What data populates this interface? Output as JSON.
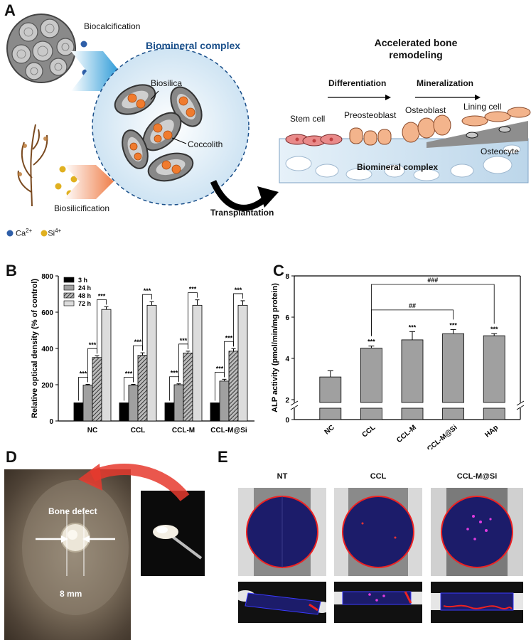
{
  "panelA": {
    "letter": "A",
    "biocalcification": "Biocalcification",
    "biosilicification": "Biosilicification",
    "biomineral_title": "Biomineral complex",
    "biosilica": "Biosilica",
    "coccolith": "Coccolith",
    "transplantation": "Transplantation",
    "accelerated_line1": "Accelerated bone",
    "accelerated_line2": "remodeling",
    "differentiation": "Differentiation",
    "mineralization": "Mineralization",
    "stem_cell": "Stem cell",
    "preosteoblast": "Preosteoblast",
    "osteoblast": "Osteoblast",
    "lining_cell": "Lining cell",
    "osteocyte": "Osteocyte",
    "biomineral_complex": "Biomineral complex",
    "ca_label": "Ca",
    "ca_sup": "2+",
    "si_label": "Si",
    "si_sup": "4+",
    "colors": {
      "ca": "#2f5fa8",
      "si": "#e0b020",
      "title_blue": "#1a4f8a"
    }
  },
  "panelB": {
    "letter": "B",
    "chart_data": {
      "type": "bar",
      "ylabel": "Relative optical density (% of control)",
      "ylim": [
        0,
        800
      ],
      "yticks": [
        "0",
        "200",
        "400",
        "600",
        "800"
      ],
      "categories": [
        "NC",
        "CCL",
        "CCL-M",
        "CCL-M@Si"
      ],
      "series": [
        {
          "name": "3 h",
          "values": [
            100,
            100,
            100,
            100
          ],
          "errors": [
            0,
            0,
            0,
            0
          ],
          "color": "#000000"
        },
        {
          "name": "24 h",
          "values": [
            198,
            198,
            200,
            220
          ],
          "errors": [
            4,
            4,
            5,
            10
          ],
          "color": "#a0a0a0"
        },
        {
          "name": "48 h",
          "values": [
            350,
            362,
            375,
            385
          ],
          "errors": [
            10,
            14,
            10,
            14
          ],
          "color": "#555555"
        },
        {
          "name": "72 h",
          "values": [
            615,
            638,
            638,
            638
          ],
          "errors": [
            15,
            20,
            30,
            25
          ],
          "color": "#dcdcdc"
        }
      ],
      "significance": "***",
      "legend": "top-left"
    }
  },
  "panelC": {
    "letter": "C",
    "chart_data": {
      "type": "bar",
      "ylabel": "ALP activity (pmol/min/mg protein)",
      "ylim": [
        0,
        8
      ],
      "yticks": [
        "0",
        "2",
        "4",
        "6",
        "8"
      ],
      "categories": [
        "NC",
        "CCL",
        "CCL-M",
        "CCL-M@Si",
        "HAp"
      ],
      "values": [
        3.1,
        4.5,
        4.9,
        5.2,
        5.1
      ],
      "errors": [
        0.3,
        0.1,
        0.4,
        0.2,
        0.1
      ],
      "stars": [
        "",
        "***",
        "***",
        "***",
        "***"
      ],
      "brackets": [
        {
          "label": "###",
          "from": 1,
          "to": 4
        },
        {
          "label": "##",
          "from": 1,
          "to": 3
        }
      ],
      "axis_break": true,
      "bar_color": "#a0a0a0"
    }
  },
  "panelD": {
    "letter": "D",
    "bone_defect": "Bone defect",
    "size": "8 mm"
  },
  "panelE": {
    "letter": "E",
    "columns": [
      "NT",
      "CCL",
      "CCL-M@Si"
    ]
  }
}
